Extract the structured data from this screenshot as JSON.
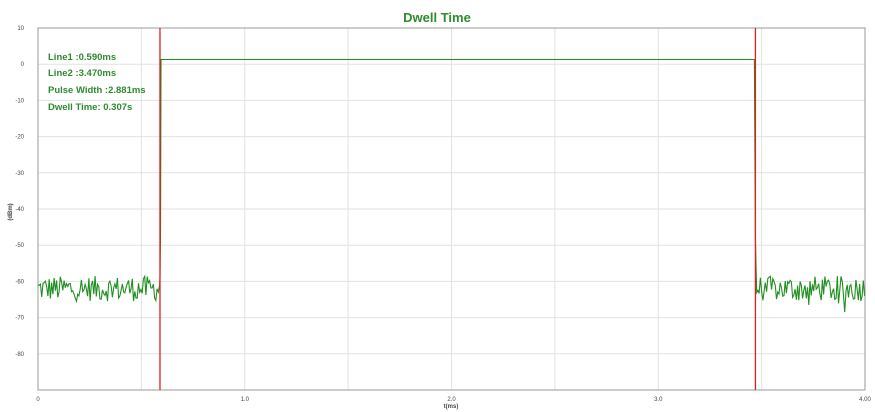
{
  "chart_data": {
    "type": "line",
    "title": "Dwell Time",
    "xlabel": "t(ms)",
    "ylabel": "(dBm)",
    "xlim": [
      0,
      4.0
    ],
    "ylim": [
      -90,
      10
    ],
    "x_ticks": [
      "0",
      "1.0",
      "2.0",
      "3.0",
      "4.00"
    ],
    "x_tick_values": [
      0,
      1.0,
      2.0,
      3.0,
      4.0
    ],
    "y_ticks": [
      "10",
      "0",
      "-10",
      "-20",
      "-30",
      "-40",
      "-50",
      "-60",
      "-70",
      "-80"
    ],
    "y_tick_values": [
      10,
      0,
      -10,
      -20,
      -30,
      -40,
      -50,
      -60,
      -70,
      -80
    ],
    "grid": true,
    "annotations": {
      "line1": "Line1 :0.590ms",
      "line2": "Line2 :3.470ms",
      "pulse_width": "Pulse Width :2.881ms",
      "dwell_time": "Dwell Time: 0.307s"
    },
    "markers": [
      {
        "name": "Line1",
        "x": 0.59,
        "color": "#e02020"
      },
      {
        "name": "Line2",
        "x": 3.47,
        "color": "#e02020"
      }
    ],
    "series": [
      {
        "color": "#1f8f1f",
        "noise_floor": -62,
        "pulse_level": 1.3,
        "points": [
          [
            0,
            -62
          ],
          [
            0.59,
            -62
          ],
          [
            0.59,
            1.3
          ],
          [
            3.47,
            1.3
          ],
          [
            3.47,
            -62
          ],
          [
            4.0,
            -62
          ]
        ]
      }
    ]
  }
}
